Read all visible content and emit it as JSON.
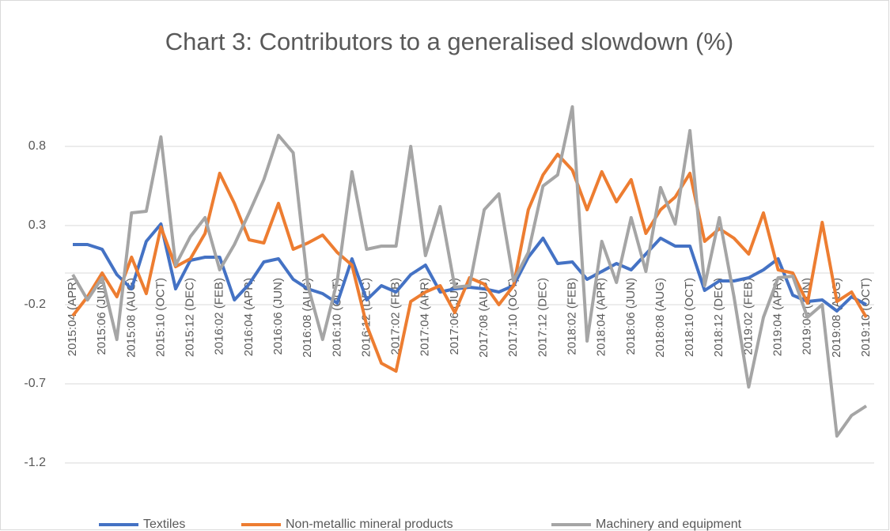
{
  "chart_data": {
    "type": "line",
    "title": "Chart 3: Contributors to a generalised slowdown (%)",
    "categories": [
      "2015:04 (APR)",
      null,
      "2015:06 (JUN)",
      null,
      "2015:08 (AUG)",
      null,
      "2015:10 (OCT)",
      null,
      "2015:12 (DEC)",
      null,
      "2016:02 (FEB)",
      null,
      "2016:04 (APR)",
      null,
      "2016:06 (JUN)",
      null,
      "2016:08 (AUG)",
      null,
      "2016:10 (OCT)",
      null,
      "2016:12 (DEC)",
      null,
      "2017:02 (FEB)",
      null,
      "2017:04 (APR)",
      null,
      "2017:06 (JUN)",
      null,
      "2017:08 (AUG)",
      null,
      "2017:10 (OCT)",
      null,
      "2017:12 (DEC)",
      null,
      "2018:02 (FEB)",
      null,
      "2018:04 (APR)",
      null,
      "2018:06 (JUN)",
      null,
      "2018:08 (AUG)",
      null,
      "2018:10 (OCT)",
      null,
      "2018:12 (DEC)",
      null,
      "2019:02 (FEB)",
      null,
      "2019:04 (APR)",
      null,
      "2019:06 (JUN)",
      null,
      "2019:08 (AUG)",
      null,
      "2019:10 (OCT)"
    ],
    "series": [
      {
        "name": "Textiles",
        "color": "#4472c4",
        "values": [
          0.18,
          0.18,
          0.15,
          -0.01,
          -0.1,
          0.2,
          0.31,
          -0.1,
          0.08,
          0.1,
          0.1,
          -0.17,
          -0.07,
          0.07,
          0.09,
          -0.04,
          -0.1,
          -0.13,
          -0.19,
          0.09,
          -0.17,
          -0.08,
          -0.12,
          -0.01,
          0.05,
          -0.12,
          -0.1,
          -0.09,
          -0.1,
          -0.12,
          -0.08,
          0.1,
          0.22,
          0.06,
          0.07,
          -0.04,
          0.01,
          0.06,
          0.02,
          0.12,
          0.22,
          0.17,
          0.17,
          -0.11,
          -0.05,
          -0.05,
          -0.03,
          0.02,
          0.09,
          -0.14,
          -0.18,
          -0.17,
          -0.24,
          -0.15,
          -0.2
        ]
      },
      {
        "name": "Non-metallic mineral products",
        "color": "#ed7d31",
        "values": [
          -0.27,
          -0.15,
          0,
          -0.15,
          0.1,
          -0.13,
          0.29,
          0.04,
          0.09,
          0.25,
          0.63,
          0.44,
          0.21,
          0.19,
          0.44,
          0.15,
          0.19,
          0.24,
          0.13,
          0.05,
          -0.33,
          -0.57,
          -0.62,
          -0.18,
          -0.12,
          -0.08,
          -0.25,
          -0.03,
          -0.07,
          -0.2,
          -0.08,
          0.4,
          0.62,
          0.75,
          0.65,
          0.4,
          0.64,
          0.45,
          0.59,
          0.25,
          0.4,
          0.48,
          0.63,
          0.2,
          0.28,
          0.22,
          0.12,
          0.38,
          0.02,
          0,
          -0.19,
          0.32,
          -0.18,
          -0.12,
          -0.28
        ]
      },
      {
        "name": "Machinery and equipment",
        "color": "#a5a5a5",
        "values": [
          -0.01,
          -0.17,
          -0.03,
          -0.42,
          0.38,
          0.39,
          0.86,
          0.05,
          0.23,
          0.35,
          0.02,
          0.18,
          0.38,
          0.59,
          0.87,
          0.76,
          -0.08,
          -0.42,
          -0.05,
          0.64,
          0.15,
          0.17,
          0.17,
          0.8,
          0.11,
          0.42,
          -0.09,
          -0.08,
          0.4,
          0.5,
          -0.05,
          0.13,
          0.55,
          0.62,
          1.05,
          -0.43,
          0.2,
          -0.06,
          0.35,
          0.01,
          0.54,
          0.31,
          0.9,
          -0.08,
          0.35,
          -0.15,
          -0.72,
          -0.28,
          -0.03,
          -0.02,
          -0.28,
          -0.2,
          -1.03,
          -0.9,
          -0.84
        ]
      }
    ],
    "ylim": [
      -1.4,
      1.1
    ],
    "yticks": [
      -1.2,
      -0.7,
      -0.2,
      0.3,
      0.8
    ],
    "grid": true,
    "legend": "bottom"
  }
}
